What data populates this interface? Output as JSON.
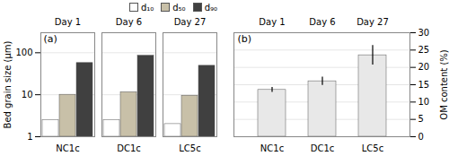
{
  "chart_data": [
    {
      "type": "bar",
      "categories": [
        "NC1c",
        "DC1c",
        "LC5c"
      ],
      "top_labels": [
        "Day 1",
        "Day 6",
        "Day 27"
      ],
      "series": [
        {
          "name": "d₁₀",
          "color": "#ffffff",
          "values": [
            2.5,
            2.5,
            2.0
          ]
        },
        {
          "name": "d₅₀",
          "color": "#c8c0a8",
          "values": [
            10.0,
            11.5,
            9.5
          ]
        },
        {
          "name": "d₉₀",
          "color": "#404040",
          "values": [
            57.0,
            85.0,
            49.0
          ]
        }
      ],
      "ylabel": "Bed grain size (μm)",
      "annotation": "(a)",
      "log": "y",
      "ylim": [
        1,
        300
      ],
      "yticks": [
        1,
        10,
        100
      ],
      "grid": true,
      "legend": "upper right"
    },
    {
      "type": "bar",
      "categories": [
        "NC1c",
        "DC1c",
        "LC5c"
      ],
      "top_labels": [
        "Day 1",
        "Day 6",
        "Day 27"
      ],
      "values": [
        13.5,
        16.0,
        23.5
      ],
      "errors": [
        0.7,
        1.2,
        2.8
      ],
      "color": "#e8e8e8",
      "ylabel": "OM content (%)",
      "annotation": "(b)",
      "ylim": [
        0,
        30
      ],
      "yticks": [
        0,
        5,
        10,
        15,
        20,
        25,
        30
      ],
      "grid": true
    }
  ]
}
